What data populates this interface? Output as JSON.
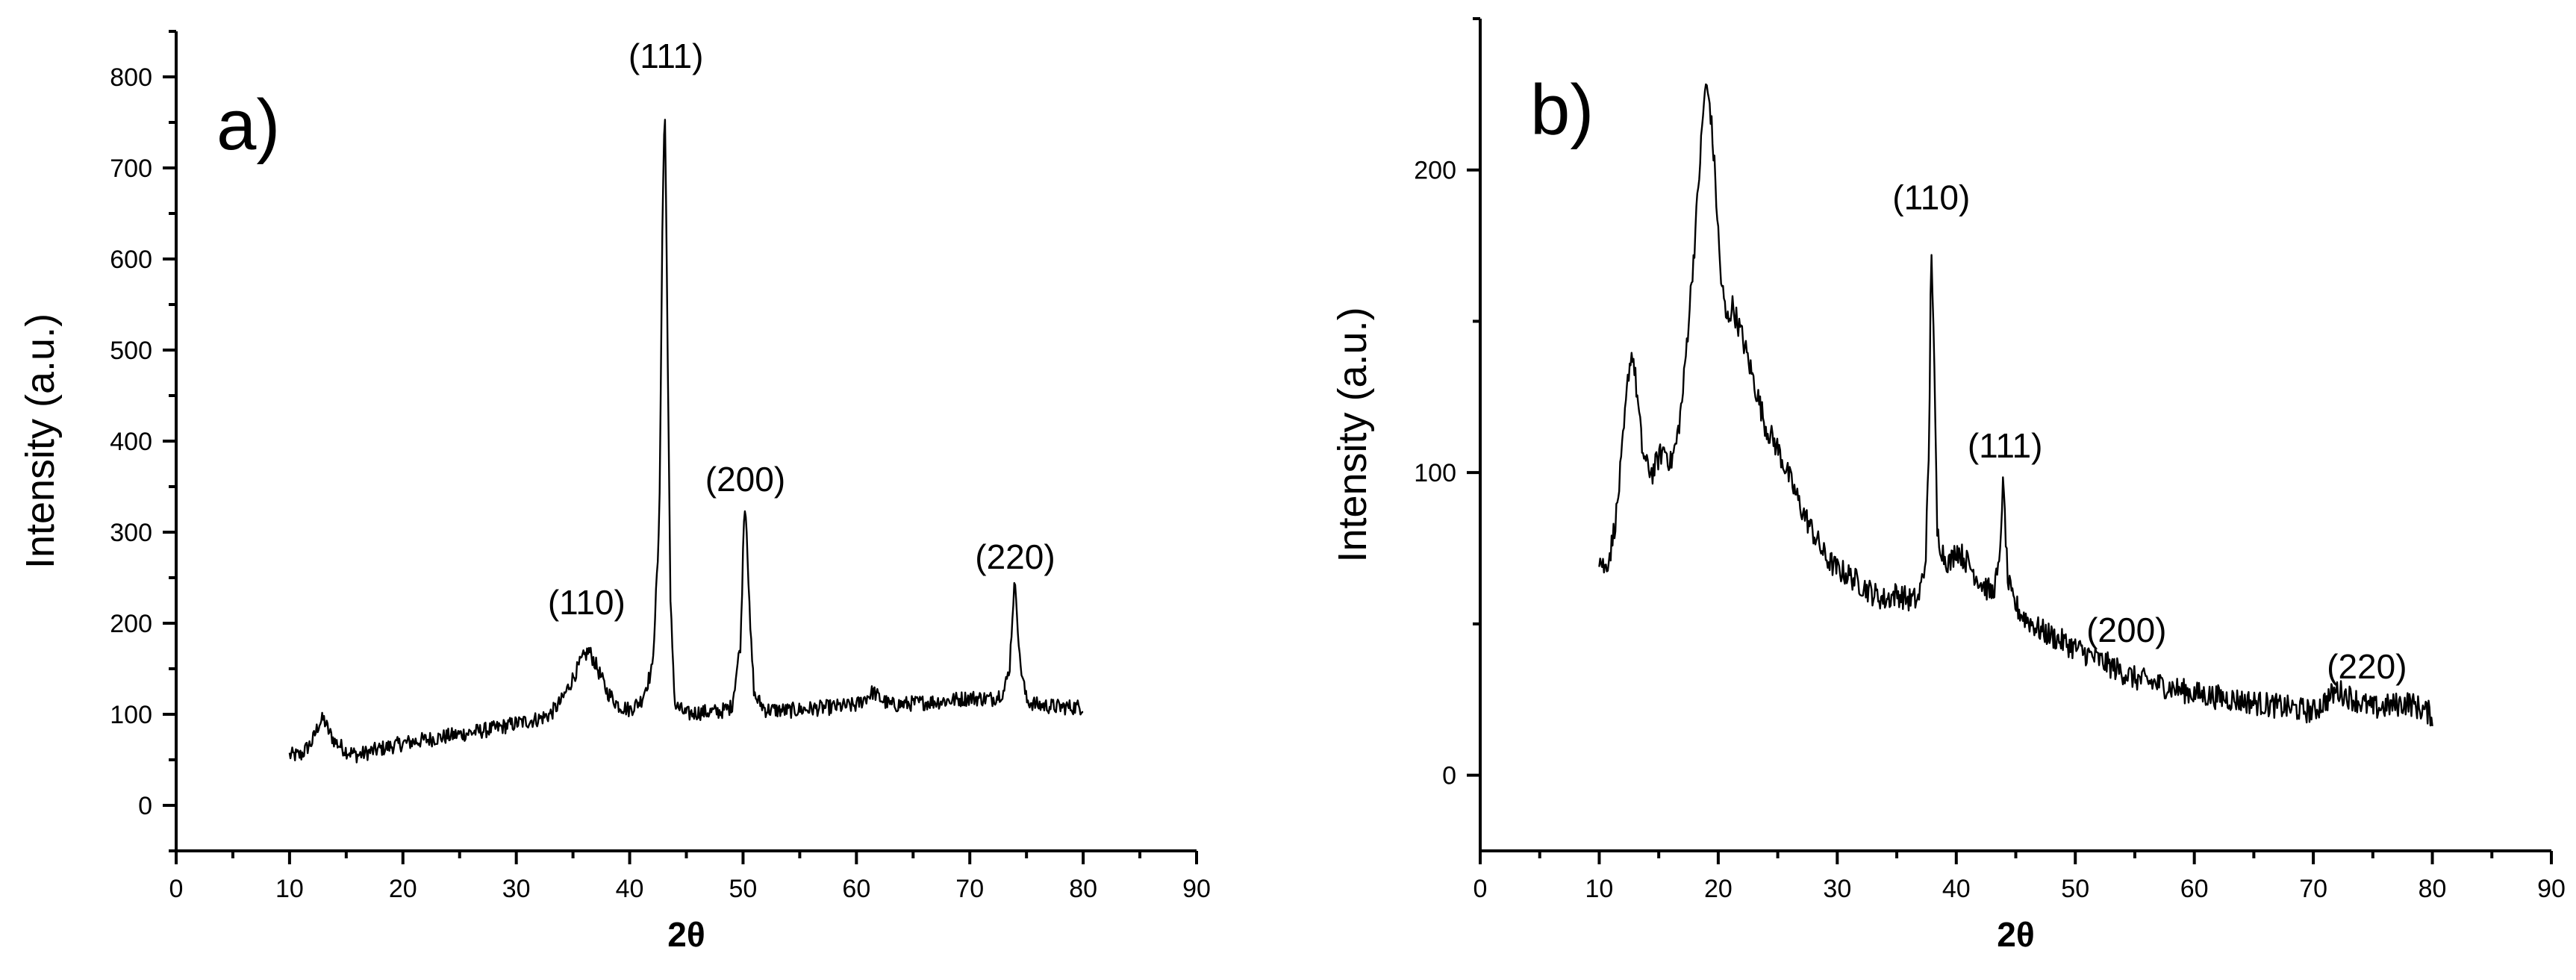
{
  "chart_data": [
    {
      "type": "line",
      "panel_label": "a)",
      "xlabel": "2θ",
      "ylabel": "Intensity (a.u.)",
      "xlim": [
        0,
        90
      ],
      "ylim": [
        -50,
        850
      ],
      "x_ticks": [
        0,
        10,
        20,
        30,
        40,
        50,
        60,
        70,
        80,
        90
      ],
      "y_ticks": [
        0,
        100,
        200,
        300,
        400,
        500,
        600,
        700,
        800
      ],
      "grid": false,
      "series": [
        {
          "x": [
            10,
            11,
            12,
            12.6,
            13,
            13.5,
            14,
            15,
            16,
            18,
            20,
            22,
            25,
            28,
            30,
            32,
            33,
            34,
            35,
            35.8,
            36.4,
            37,
            38,
            39,
            40,
            41,
            42,
            42.6,
            42.9,
            43.1,
            43.3,
            43.6,
            44,
            45,
            46,
            48,
            49,
            49.8,
            50.1,
            50.3,
            50.6,
            51,
            52,
            54,
            56,
            58,
            60,
            61,
            61.5,
            62,
            63,
            65,
            68,
            70,
            72,
            73,
            73.5,
            73.9,
            74.1,
            74.4,
            75,
            76,
            78,
            80
          ],
          "y": [
            55,
            55,
            70,
            90,
            95,
            80,
            70,
            60,
            55,
            62,
            68,
            72,
            78,
            84,
            90,
            95,
            100,
            115,
            140,
            160,
            170,
            155,
            125,
            110,
            105,
            115,
            150,
            300,
            650,
            775,
            560,
            220,
            110,
            100,
            102,
            103,
            108,
            180,
            330,
            315,
            200,
            120,
            105,
            104,
            106,
            108,
            110,
            120,
            125,
            118,
            110,
            112,
            115,
            118,
            117,
            125,
            150,
            240,
            230,
            160,
            115,
            110,
            108,
            108
          ]
        }
      ],
      "annotations": [
        {
          "text": "(110)",
          "x": 36.2,
          "y": 210
        },
        {
          "text": "(111)",
          "x": 43.2,
          "y": 810
        },
        {
          "text": "(200)",
          "x": 50.2,
          "y": 345
        },
        {
          "text": "(220)",
          "x": 74.0,
          "y": 260
        }
      ]
    },
    {
      "type": "line",
      "panel_label": "b)",
      "xlabel": "2θ",
      "ylabel": "Intensity (a.u.)",
      "xlim": [
        0,
        90
      ],
      "ylim": [
        -25,
        250
      ],
      "x_ticks": [
        0,
        10,
        20,
        30,
        40,
        50,
        60,
        70,
        80,
        90
      ],
      "y_ticks": [
        0,
        100,
        200
      ],
      "grid": false,
      "series": [
        {
          "x": [
            10,
            10.5,
            11,
            11.5,
            12,
            12.5,
            12.8,
            13.2,
            13.6,
            14,
            14.5,
            15,
            15.5,
            16,
            16.5,
            17,
            17.5,
            18,
            18.5,
            18.9,
            19.3,
            19.7,
            20.2,
            20.7,
            21.2,
            22,
            23,
            24,
            25,
            26,
            27,
            28,
            29,
            30,
            31,
            32,
            33,
            34,
            35,
            36,
            36.8,
            37.4,
            37.7,
            37.9,
            38.1,
            38.4,
            39,
            39.5,
            40,
            41,
            42,
            43,
            43.6,
            43.9,
            44.1,
            44.3,
            44.7,
            45.5,
            47,
            50,
            55,
            60,
            65,
            70,
            72,
            75,
            78,
            80
          ],
          "y": [
            72,
            68,
            75,
            88,
            110,
            135,
            140,
            125,
            108,
            102,
            100,
            105,
            108,
            103,
            110,
            125,
            150,
            175,
            205,
            228,
            222,
            200,
            165,
            150,
            155,
            145,
            130,
            115,
            108,
            98,
            88,
            80,
            72,
            68,
            66,
            63,
            60,
            58,
            60,
            58,
            58,
            70,
            105,
            178,
            145,
            80,
            72,
            70,
            75,
            70,
            64,
            60,
            68,
            96,
            85,
            65,
            58,
            53,
            48,
            42,
            32,
            27,
            24,
            21,
            28,
            22,
            24,
            20
          ]
        }
      ],
      "annotations": [
        {
          "text": "(110)",
          "x": 37.9,
          "y": 187
        },
        {
          "text": "(111)",
          "x": 44.1,
          "y": 105
        },
        {
          "text": "(200)",
          "x": 54.3,
          "y": 44
        },
        {
          "text": "(220)",
          "x": 74.5,
          "y": 32
        }
      ]
    }
  ]
}
